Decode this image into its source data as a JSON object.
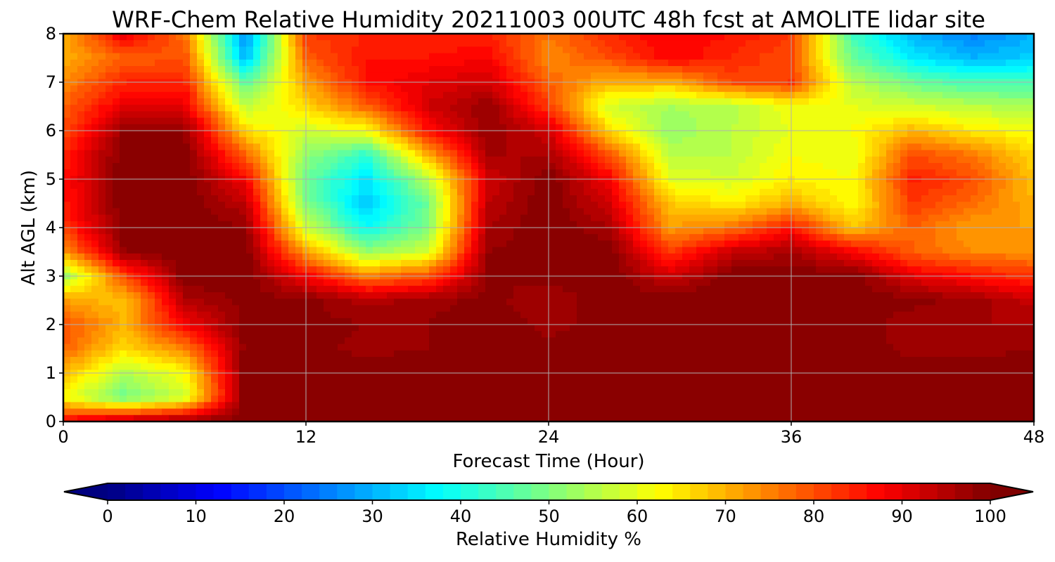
{
  "chart_data": {
    "type": "heatmap",
    "title": "WRF-Chem Relative Humidity 20211003 00UTC 48h fcst at AMOLITE lidar site",
    "xlabel": "Forecast Time (Hour)",
    "ylabel": "Alt AGL (km)",
    "xlim": [
      0,
      48
    ],
    "ylim": [
      0,
      8
    ],
    "x_ticks": [
      0,
      12,
      24,
      36,
      48
    ],
    "y_ticks": [
      0,
      1,
      2,
      3,
      4,
      5,
      6,
      7,
      8
    ],
    "x_tick_labels": [
      "0",
      "12",
      "24",
      "36",
      "48"
    ],
    "y_tick_labels": [
      "0",
      "1",
      "2",
      "3",
      "4",
      "5",
      "6",
      "7",
      "8"
    ],
    "grid": true,
    "colormap": "jet",
    "colorbar": {
      "label": "Relative Humidity %",
      "range": [
        0,
        100
      ],
      "ticks": [
        0,
        10,
        20,
        30,
        40,
        50,
        60,
        70,
        80,
        90,
        100
      ],
      "tick_labels": [
        "0",
        "10",
        "20",
        "30",
        "40",
        "50",
        "60",
        "70",
        "80",
        "90",
        "100"
      ],
      "extend": "both",
      "orientation": "horizontal"
    },
    "x": [
      0,
      3,
      6,
      9,
      12,
      15,
      18,
      21,
      24,
      27,
      30,
      33,
      36,
      39,
      42,
      45,
      48
    ],
    "y": [
      0,
      0.5,
      1,
      1.5,
      2,
      2.5,
      3,
      3.5,
      4,
      4.5,
      5,
      5.5,
      6,
      6.5,
      7,
      7.5,
      8
    ],
    "z": [
      [
        88,
        96,
        98,
        100,
        100,
        100,
        100,
        100,
        100,
        100,
        100,
        100,
        100,
        100,
        100,
        100,
        100
      ],
      [
        62,
        48,
        58,
        100,
        100,
        100,
        100,
        100,
        100,
        100,
        100,
        100,
        100,
        100,
        100,
        100,
        100
      ],
      [
        70,
        55,
        62,
        100,
        100,
        100,
        100,
        100,
        100,
        100,
        100,
        100,
        100,
        100,
        100,
        100,
        100
      ],
      [
        78,
        66,
        75,
        99,
        99,
        97,
        98,
        100,
        99,
        100,
        99,
        100,
        100,
        100,
        97,
        97,
        98
      ],
      [
        80,
        70,
        88,
        99,
        99,
        98,
        98,
        100,
        97,
        99,
        98,
        100,
        100,
        100,
        96,
        96,
        96
      ],
      [
        72,
        68,
        95,
        99,
        99,
        95,
        97,
        99,
        96,
        100,
        100,
        100,
        100,
        100,
        99,
        97,
        93
      ],
      [
        52,
        80,
        100,
        100,
        88,
        75,
        80,
        98,
        99,
        100,
        92,
        100,
        100,
        100,
        90,
        86,
        82
      ],
      [
        72,
        98,
        100,
        100,
        72,
        52,
        58,
        98,
        100,
        100,
        82,
        93,
        96,
        88,
        78,
        74,
        74
      ],
      [
        82,
        100,
        100,
        98,
        58,
        38,
        50,
        96,
        100,
        96,
        72,
        76,
        86,
        68,
        78,
        72,
        72
      ],
      [
        85,
        100,
        100,
        94,
        50,
        32,
        48,
        94,
        100,
        92,
        68,
        64,
        70,
        62,
        82,
        77,
        70
      ],
      [
        86,
        100,
        100,
        88,
        48,
        35,
        55,
        92,
        100,
        88,
        60,
        58,
        64,
        62,
        85,
        80,
        68
      ],
      [
        84,
        100,
        100,
        78,
        52,
        42,
        70,
        96,
        96,
        80,
        56,
        56,
        62,
        60,
        80,
        76,
        66
      ],
      [
        80,
        98,
        98,
        66,
        58,
        62,
        86,
        98,
        92,
        66,
        52,
        56,
        60,
        62,
        70,
        64,
        62
      ],
      [
        78,
        90,
        90,
        56,
        66,
        78,
        92,
        98,
        82,
        58,
        54,
        55,
        62,
        60,
        58,
        56,
        54
      ],
      [
        74,
        84,
        84,
        46,
        72,
        86,
        90,
        92,
        78,
        70,
        70,
        80,
        82,
        56,
        48,
        44,
        44
      ],
      [
        70,
        78,
        80,
        30,
        78,
        86,
        86,
        88,
        74,
        80,
        88,
        84,
        80,
        48,
        36,
        30,
        33
      ],
      [
        70,
        90,
        76,
        26,
        82,
        84,
        84,
        84,
        76,
        84,
        88,
        86,
        82,
        44,
        30,
        25,
        30
      ]
    ]
  }
}
